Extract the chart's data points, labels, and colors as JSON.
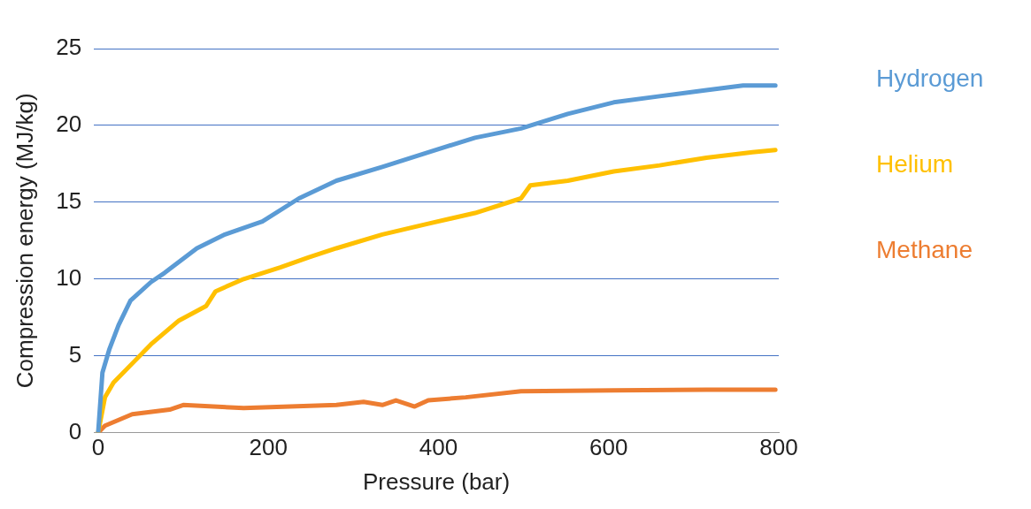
{
  "chart_data": {
    "type": "line",
    "xlabel": "Pressure (bar)",
    "ylabel": "Compression energy (MJ/kg)",
    "xlim": [
      -5,
      800
    ],
    "xticks": [
      0,
      200,
      400,
      600,
      800
    ],
    "ylim": [
      0,
      25
    ],
    "yticks": [
      0,
      5,
      10,
      15,
      20,
      25
    ],
    "grid": "y",
    "legend": "right",
    "marker": "none",
    "line_style": "solid",
    "series": [
      {
        "name": "Hydrogen",
        "color": "#5b9bd5",
        "x": [
          0,
          5,
          13,
          24,
          38,
          62,
          78,
          116,
          149,
          193,
          236,
          280,
          334,
          388,
          443,
          497,
          552,
          606,
          660,
          715,
          758,
          796
        ],
        "values": [
          0,
          3.9,
          5.4,
          7,
          8.6,
          9.8,
          10.4,
          12,
          12.9,
          13.75,
          15.25,
          16.4,
          17.3,
          18.25,
          19.2,
          19.8,
          20.75,
          21.5,
          21.9,
          22.3,
          22.6,
          22.6
        ]
      },
      {
        "name": "Helium",
        "color": "#ffc000",
        "x": [
          0,
          8,
          18,
          40,
          62,
          95,
          127,
          138,
          171,
          214,
          247,
          280,
          334,
          388,
          443,
          497,
          508,
          552,
          606,
          660,
          715,
          769,
          796
        ],
        "values": [
          0,
          2.3,
          3.25,
          4.5,
          5.75,
          7.3,
          8.25,
          9.2,
          10,
          10.75,
          11.4,
          12,
          12.9,
          13.6,
          14.3,
          15.25,
          16.1,
          16.4,
          17,
          17.4,
          17.9,
          18.25,
          18.4
        ]
      },
      {
        "name": "Methane",
        "color": "#ed7d31",
        "x": [
          0,
          8,
          40,
          84,
          100,
          171,
          280,
          312,
          334,
          350,
          372,
          388,
          432,
          497,
          606,
          715,
          796
        ],
        "values": [
          0,
          0.45,
          1.2,
          1.5,
          1.8,
          1.6,
          1.8,
          2,
          1.8,
          2.1,
          1.7,
          2.1,
          2.3,
          2.7,
          2.75,
          2.8,
          2.8
        ]
      }
    ]
  }
}
